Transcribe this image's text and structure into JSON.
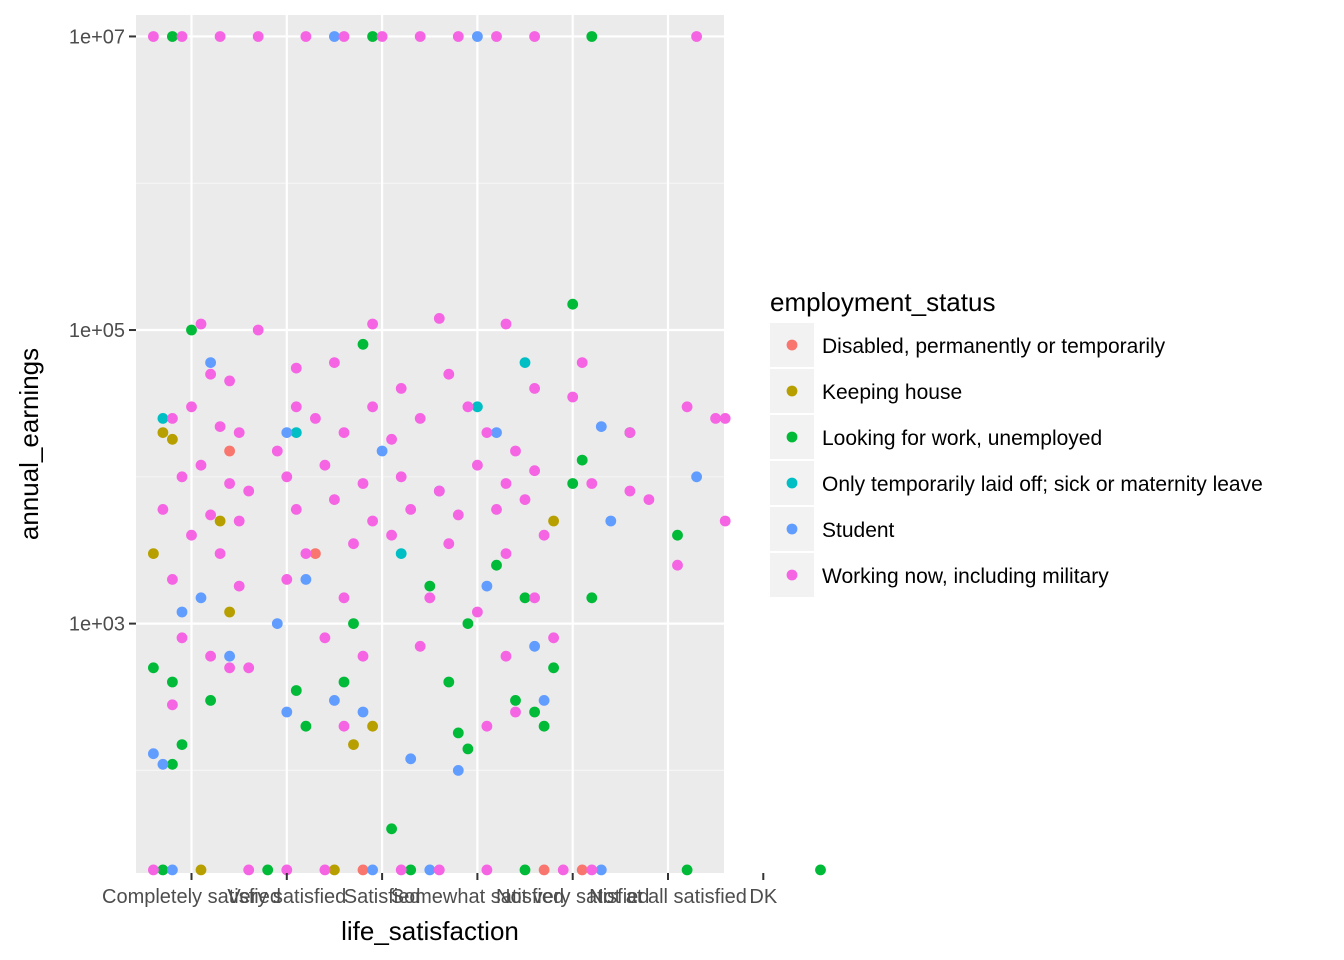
{
  "chart_data": {
    "type": "scatter",
    "xlabel": "life_satisfaction",
    "ylabel": "annual_earnings",
    "x_categories": [
      "Completely satisfied",
      "Very satisfied",
      "Satisfied",
      "Somewhat satisfied",
      "Not very satisfied",
      "Not at all satisfied",
      "DK"
    ],
    "y_scale": "log10",
    "y_ticks": [
      1000,
      100000,
      10000000
    ],
    "y_tick_labels": [
      "1e+03",
      "1e+05",
      "1e+07"
    ],
    "ylim": [
      20,
      14000000
    ],
    "grid": true,
    "legend": {
      "title": "employment_status",
      "position": "right",
      "entries": [
        {
          "label": "Disabled, permanently or temporarily",
          "color": "#F8766D"
        },
        {
          "label": "Keeping house",
          "color": "#B79F00"
        },
        {
          "label": "Looking for work, unemployed",
          "color": "#00BA38"
        },
        {
          "label": "Only temporarily laid off; sick or maternity leave",
          "color": "#00BFC4"
        },
        {
          "label": "Student",
          "color": "#619CFF"
        },
        {
          "label": "Working now, including military",
          "color": "#F564E3"
        }
      ]
    },
    "series": [
      {
        "name": "Disabled, permanently or temporarily",
        "color": "#F8766D",
        "points": [
          [
            0.4,
            15000
          ],
          [
            1.3,
            3000
          ],
          [
            4.1,
            21
          ],
          [
            3.7,
            21
          ],
          [
            1.8,
            21
          ]
        ]
      },
      {
        "name": "Keeping house",
        "color": "#B79F00",
        "points": [
          [
            -0.3,
            20000
          ],
          [
            -0.2,
            18000
          ],
          [
            0.3,
            5000
          ],
          [
            0.4,
            1200
          ],
          [
            1.7,
            150
          ],
          [
            1.9,
            200
          ],
          [
            3.8,
            5000
          ],
          [
            -0.4,
            3000
          ],
          [
            0.1,
            21
          ],
          [
            1.5,
            21
          ]
        ]
      },
      {
        "name": "Looking for work, unemployed",
        "color": "#00BA38",
        "points": [
          [
            -0.2,
            10000000
          ],
          [
            1.9,
            10000000
          ],
          [
            4.2,
            10000000
          ],
          [
            0.0,
            100000
          ],
          [
            1.8,
            80000
          ],
          [
            4.0,
            150000
          ],
          [
            4.0,
            9000
          ],
          [
            4.1,
            13000
          ],
          [
            4.6,
            20000
          ],
          [
            5.1,
            4000
          ],
          [
            4.2,
            1500
          ],
          [
            -0.4,
            500
          ],
          [
            -0.2,
            400
          ],
          [
            -0.1,
            150
          ],
          [
            -0.2,
            110
          ],
          [
            1.1,
            350
          ],
          [
            1.2,
            200
          ],
          [
            1.6,
            400
          ],
          [
            0.2,
            300
          ],
          [
            3.8,
            500
          ],
          [
            2.7,
            400
          ],
          [
            2.9,
            1000
          ],
          [
            2.8,
            180
          ],
          [
            3.4,
            300
          ],
          [
            3.6,
            250
          ],
          [
            2.9,
            140
          ],
          [
            2.1,
            40
          ],
          [
            3.7,
            200
          ],
          [
            0.8,
            21
          ],
          [
            3.5,
            21
          ],
          [
            5.2,
            21
          ],
          [
            6.6,
            21
          ],
          [
            2.3,
            21
          ],
          [
            -0.3,
            21
          ],
          [
            1.7,
            1000
          ],
          [
            3.5,
            1500
          ],
          [
            2.5,
            1800
          ],
          [
            3.2,
            2500
          ]
        ]
      },
      {
        "name": "Only temporarily laid off; sick or maternity leave",
        "color": "#00BFC4",
        "points": [
          [
            -0.3,
            25000
          ],
          [
            2.2,
            3000
          ],
          [
            3.5,
            60000
          ],
          [
            1.1,
            20000
          ],
          [
            3.0,
            30000
          ]
        ]
      },
      {
        "name": "Student",
        "color": "#619CFF",
        "points": [
          [
            1.5,
            10000000
          ],
          [
            3.0,
            10000000
          ],
          [
            0.2,
            60000
          ],
          [
            1.0,
            20000
          ],
          [
            2.0,
            15000
          ],
          [
            2.6,
            8000
          ],
          [
            3.2,
            20000
          ],
          [
            4.3,
            22000
          ],
          [
            4.4,
            5000
          ],
          [
            5.3,
            10000
          ],
          [
            0.1,
            1500
          ],
          [
            -0.1,
            1200
          ],
          [
            -0.4,
            130
          ],
          [
            -0.3,
            110
          ],
          [
            1.0,
            250
          ],
          [
            1.5,
            300
          ],
          [
            1.8,
            250
          ],
          [
            2.3,
            120
          ],
          [
            3.7,
            300
          ],
          [
            2.8,
            100
          ],
          [
            0.4,
            600
          ],
          [
            0.9,
            1000
          ],
          [
            1.2,
            2000
          ],
          [
            3.1,
            1800
          ],
          [
            3.6,
            700
          ],
          [
            4.3,
            21
          ],
          [
            -0.2,
            21
          ],
          [
            1.9,
            21
          ],
          [
            2.5,
            21
          ]
        ]
      },
      {
        "name": "Working now, including military",
        "color": "#F564E3",
        "points": [
          [
            -0.4,
            10000000
          ],
          [
            -0.1,
            10000000
          ],
          [
            0.3,
            10000000
          ],
          [
            0.7,
            10000000
          ],
          [
            1.2,
            10000000
          ],
          [
            1.6,
            10000000
          ],
          [
            2.0,
            10000000
          ],
          [
            2.4,
            10000000
          ],
          [
            2.8,
            10000000
          ],
          [
            3.2,
            10000000
          ],
          [
            3.6,
            10000000
          ],
          [
            5.3,
            10000000
          ],
          [
            0.1,
            110000
          ],
          [
            0.7,
            100000
          ],
          [
            1.9,
            110000
          ],
          [
            2.6,
            120000
          ],
          [
            3.3,
            110000
          ],
          [
            0.2,
            50000
          ],
          [
            0.4,
            45000
          ],
          [
            1.1,
            55000
          ],
          [
            1.5,
            60000
          ],
          [
            2.2,
            40000
          ],
          [
            2.7,
            50000
          ],
          [
            3.6,
            40000
          ],
          [
            4.1,
            60000
          ],
          [
            4.0,
            35000
          ],
          [
            4.6,
            20000
          ],
          [
            5.2,
            30000
          ],
          [
            5.5,
            25000
          ],
          [
            5.6,
            25000
          ],
          [
            0.0,
            30000
          ],
          [
            -0.2,
            25000
          ],
          [
            0.3,
            22000
          ],
          [
            0.5,
            20000
          ],
          [
            0.9,
            15000
          ],
          [
            1.1,
            30000
          ],
          [
            1.3,
            25000
          ],
          [
            1.6,
            20000
          ],
          [
            1.9,
            30000
          ],
          [
            2.1,
            18000
          ],
          [
            2.4,
            25000
          ],
          [
            2.9,
            30000
          ],
          [
            3.1,
            20000
          ],
          [
            3.4,
            15000
          ],
          [
            0.1,
            12000
          ],
          [
            -0.1,
            10000
          ],
          [
            0.4,
            9000
          ],
          [
            0.6,
            8000
          ],
          [
            1.0,
            10000
          ],
          [
            1.4,
            12000
          ],
          [
            1.8,
            9000
          ],
          [
            2.2,
            10000
          ],
          [
            2.6,
            8000
          ],
          [
            3.0,
            12000
          ],
          [
            3.3,
            9000
          ],
          [
            3.6,
            11000
          ],
          [
            4.2,
            9000
          ],
          [
            4.6,
            8000
          ],
          [
            -0.3,
            6000
          ],
          [
            0.2,
            5500
          ],
          [
            0.5,
            5000
          ],
          [
            1.1,
            6000
          ],
          [
            1.5,
            7000
          ],
          [
            1.9,
            5000
          ],
          [
            2.3,
            6000
          ],
          [
            2.8,
            5500
          ],
          [
            3.2,
            6000
          ],
          [
            3.5,
            7000
          ],
          [
            4.8,
            7000
          ],
          [
            5.6,
            5000
          ],
          [
            0.0,
            4000
          ],
          [
            0.3,
            3000
          ],
          [
            1.2,
            3000
          ],
          [
            1.7,
            3500
          ],
          [
            2.1,
            4000
          ],
          [
            2.7,
            3500
          ],
          [
            3.3,
            3000
          ],
          [
            3.7,
            4000
          ],
          [
            5.1,
            2500
          ],
          [
            -0.2,
            2000
          ],
          [
            0.5,
            1800
          ],
          [
            1.0,
            2000
          ],
          [
            1.6,
            1500
          ],
          [
            2.5,
            1500
          ],
          [
            3.0,
            1200
          ],
          [
            3.6,
            1500
          ],
          [
            -0.1,
            800
          ],
          [
            0.2,
            600
          ],
          [
            0.6,
            500
          ],
          [
            1.4,
            800
          ],
          [
            1.8,
            600
          ],
          [
            2.4,
            700
          ],
          [
            3.3,
            600
          ],
          [
            3.8,
            800
          ],
          [
            -0.2,
            280
          ],
          [
            0.4,
            500
          ],
          [
            1.6,
            200
          ],
          [
            3.1,
            200
          ],
          [
            3.4,
            250
          ],
          [
            3.9,
            21
          ],
          [
            -0.4,
            21
          ],
          [
            0.6,
            21
          ],
          [
            1.0,
            21
          ],
          [
            1.4,
            21
          ],
          [
            2.2,
            21
          ],
          [
            2.6,
            21
          ],
          [
            3.1,
            21
          ],
          [
            4.2,
            21
          ]
        ]
      }
    ]
  }
}
